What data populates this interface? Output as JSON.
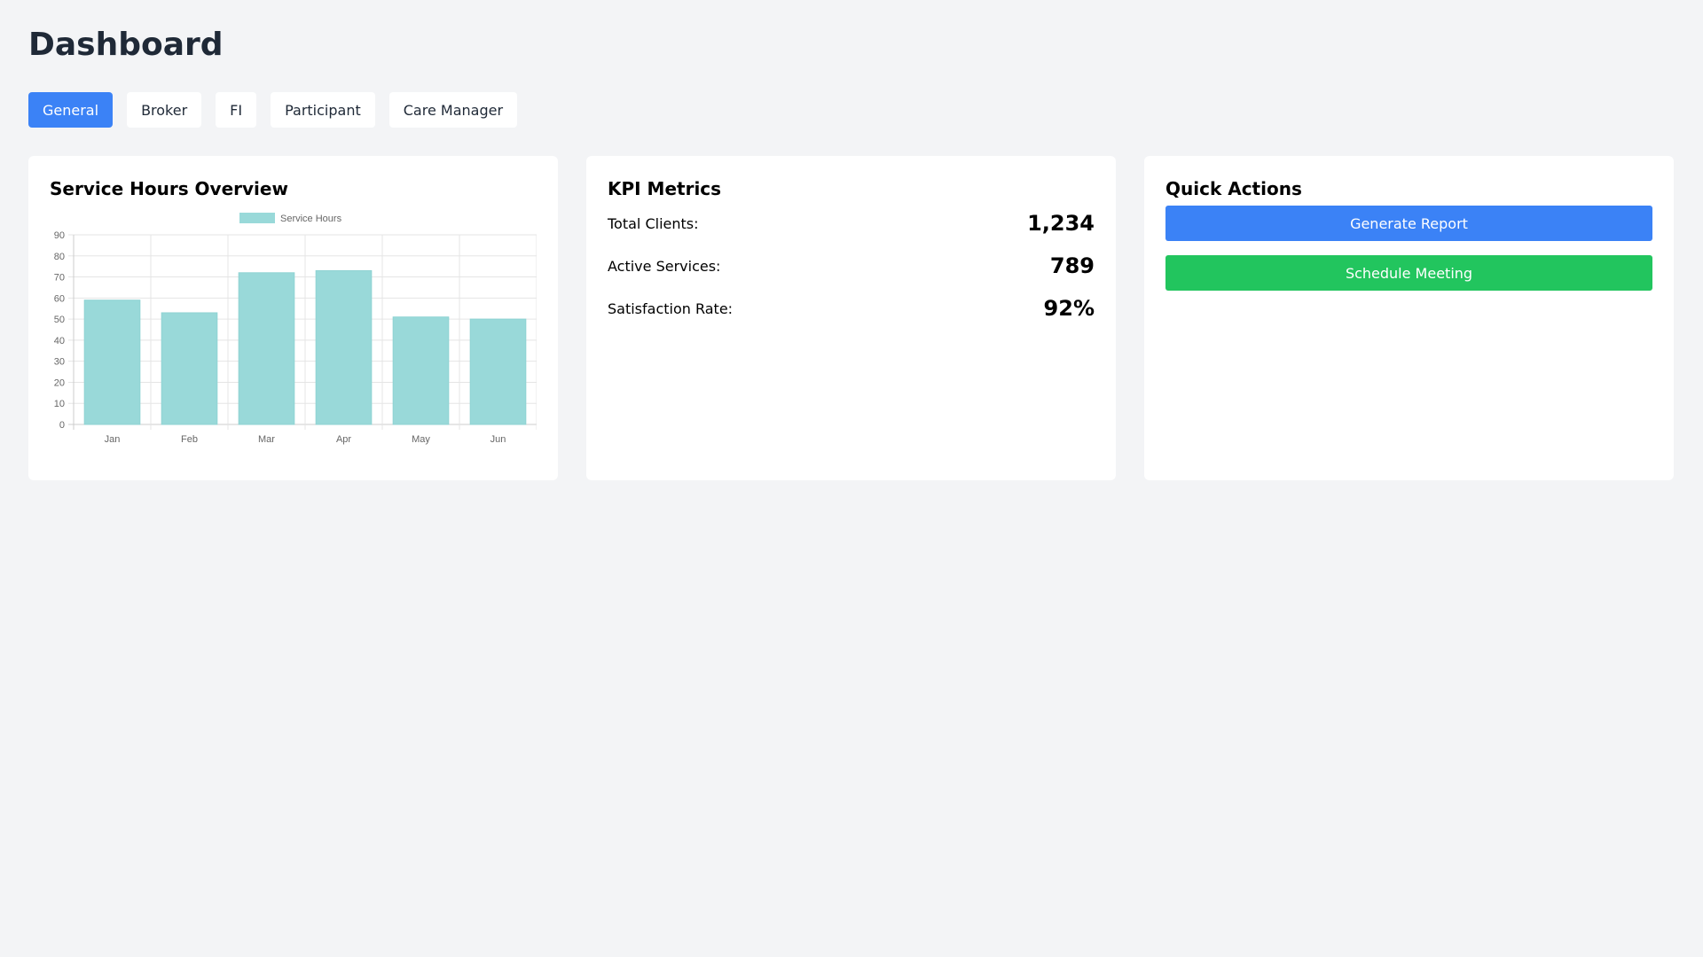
{
  "page": {
    "title": "Dashboard"
  },
  "tabs": [
    {
      "label": "General",
      "active": true
    },
    {
      "label": "Broker",
      "active": false
    },
    {
      "label": "FI",
      "active": false
    },
    {
      "label": "Participant",
      "active": false
    },
    {
      "label": "Care Manager",
      "active": false
    }
  ],
  "service_card": {
    "title": "Service Hours Overview"
  },
  "kpi": {
    "title": "KPI Metrics",
    "rows": [
      {
        "label": "Total Clients:",
        "value": "1,234"
      },
      {
        "label": "Active Services:",
        "value": "789"
      },
      {
        "label": "Satisfaction Rate:",
        "value": "92%"
      }
    ]
  },
  "quick_actions": {
    "title": "Quick Actions",
    "generate_label": "Generate Report",
    "schedule_label": "Schedule Meeting"
  },
  "colors": {
    "accent": "#3b82f6",
    "success": "#22c55e",
    "bar_fill": "#99d9d9",
    "background": "#f3f4f6"
  },
  "chart_data": {
    "type": "bar",
    "categories": [
      "Jan",
      "Feb",
      "Mar",
      "Apr",
      "May",
      "Jun"
    ],
    "series": [
      {
        "name": "Service Hours",
        "values": [
          59,
          53,
          72,
          73,
          51,
          50
        ]
      }
    ],
    "title": "",
    "xlabel": "",
    "ylabel": "",
    "ylim": [
      0,
      90
    ],
    "yticks": [
      0,
      10,
      20,
      30,
      40,
      50,
      60,
      70,
      80,
      90
    ],
    "grid": true,
    "legend": "top-center"
  }
}
